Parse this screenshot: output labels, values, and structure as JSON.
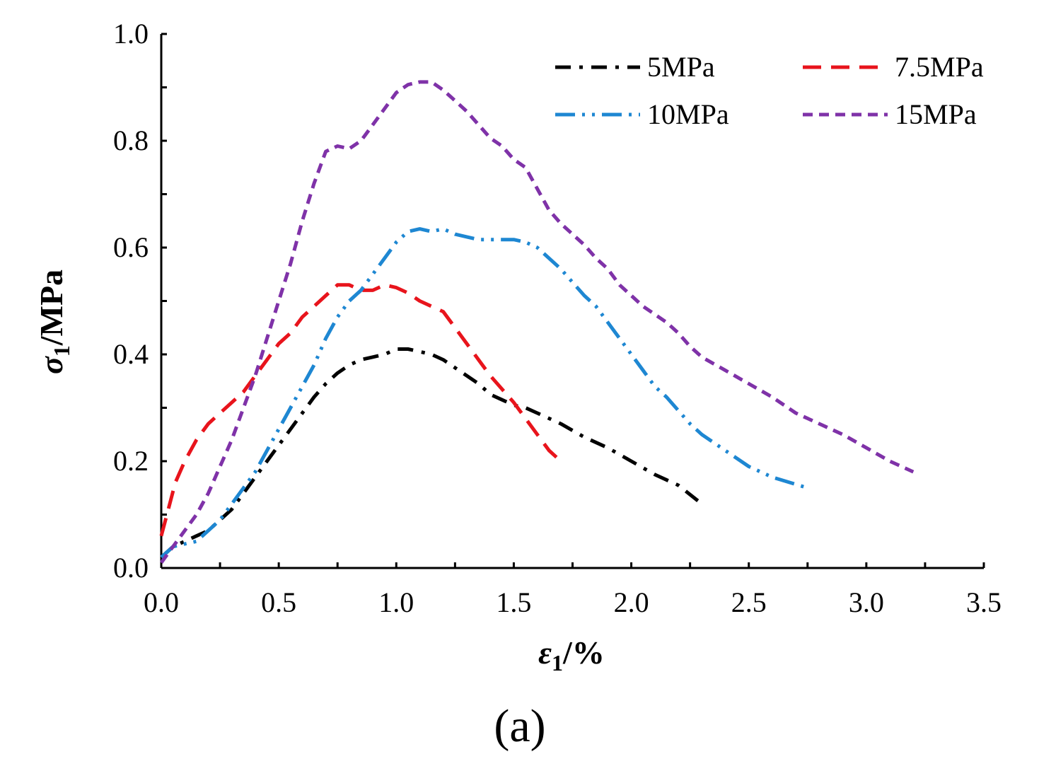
{
  "chart_data": {
    "type": "line",
    "title": "",
    "xlabel_symbol": "ε",
    "xlabel_subscript": "1",
    "xlabel_unit": "/%",
    "ylabel_symbol": "σ",
    "ylabel_subscript": "1",
    "ylabel_unit": "/MPa",
    "panel_label": "(a)",
    "xlim": [
      0,
      3.5
    ],
    "ylim": [
      0,
      1.0
    ],
    "xticks": [
      "0.0",
      "0.5",
      "1.0",
      "1.5",
      "2.0",
      "2.5",
      "3.0",
      "3.5"
    ],
    "yticks": [
      "0.0",
      "0.2",
      "0.4",
      "0.6",
      "0.8",
      "1.0"
    ],
    "legend_position": "top-right",
    "series": [
      {
        "name": "5MPa",
        "color": "#000000",
        "dash": "dashdot",
        "points": [
          [
            0.0,
            0.02
          ],
          [
            0.05,
            0.04
          ],
          [
            0.1,
            0.05
          ],
          [
            0.15,
            0.06
          ],
          [
            0.2,
            0.07
          ],
          [
            0.25,
            0.09
          ],
          [
            0.3,
            0.11
          ],
          [
            0.35,
            0.14
          ],
          [
            0.4,
            0.17
          ],
          [
            0.45,
            0.2
          ],
          [
            0.5,
            0.23
          ],
          [
            0.55,
            0.26
          ],
          [
            0.6,
            0.29
          ],
          [
            0.65,
            0.32
          ],
          [
            0.7,
            0.345
          ],
          [
            0.75,
            0.365
          ],
          [
            0.8,
            0.38
          ],
          [
            0.85,
            0.39
          ],
          [
            0.9,
            0.395
          ],
          [
            0.95,
            0.4
          ],
          [
            1.0,
            0.41
          ],
          [
            1.05,
            0.41
          ],
          [
            1.1,
            0.405
          ],
          [
            1.15,
            0.4
          ],
          [
            1.2,
            0.39
          ],
          [
            1.25,
            0.375
          ],
          [
            1.3,
            0.36
          ],
          [
            1.35,
            0.345
          ],
          [
            1.4,
            0.325
          ],
          [
            1.45,
            0.315
          ],
          [
            1.5,
            0.305
          ],
          [
            1.55,
            0.3
          ],
          [
            1.6,
            0.29
          ],
          [
            1.7,
            0.27
          ],
          [
            1.8,
            0.245
          ],
          [
            1.9,
            0.225
          ],
          [
            2.0,
            0.2
          ],
          [
            2.1,
            0.175
          ],
          [
            2.2,
            0.155
          ],
          [
            2.3,
            0.12
          ]
        ]
      },
      {
        "name": "7.5MPa",
        "color": "#e8141c",
        "dash": "dash",
        "points": [
          [
            0.0,
            0.06
          ],
          [
            0.03,
            0.11
          ],
          [
            0.06,
            0.16
          ],
          [
            0.1,
            0.2
          ],
          [
            0.15,
            0.24
          ],
          [
            0.2,
            0.27
          ],
          [
            0.25,
            0.29
          ],
          [
            0.3,
            0.31
          ],
          [
            0.35,
            0.33
          ],
          [
            0.4,
            0.36
          ],
          [
            0.45,
            0.39
          ],
          [
            0.5,
            0.42
          ],
          [
            0.55,
            0.44
          ],
          [
            0.6,
            0.47
          ],
          [
            0.65,
            0.49
          ],
          [
            0.7,
            0.51
          ],
          [
            0.75,
            0.53
          ],
          [
            0.8,
            0.53
          ],
          [
            0.85,
            0.52
          ],
          [
            0.9,
            0.52
          ],
          [
            0.95,
            0.53
          ],
          [
            1.0,
            0.525
          ],
          [
            1.05,
            0.515
          ],
          [
            1.1,
            0.5
          ],
          [
            1.15,
            0.49
          ],
          [
            1.2,
            0.48
          ],
          [
            1.25,
            0.45
          ],
          [
            1.3,
            0.42
          ],
          [
            1.35,
            0.39
          ],
          [
            1.4,
            0.36
          ],
          [
            1.45,
            0.335
          ],
          [
            1.5,
            0.31
          ],
          [
            1.55,
            0.28
          ],
          [
            1.6,
            0.25
          ],
          [
            1.65,
            0.22
          ],
          [
            1.7,
            0.2
          ]
        ]
      },
      {
        "name": "10MPa",
        "color": "#1e87d2",
        "dash": "dashdotdot",
        "points": [
          [
            0.0,
            0.02
          ],
          [
            0.05,
            0.04
          ],
          [
            0.1,
            0.045
          ],
          [
            0.15,
            0.05
          ],
          [
            0.2,
            0.07
          ],
          [
            0.25,
            0.09
          ],
          [
            0.3,
            0.12
          ],
          [
            0.35,
            0.15
          ],
          [
            0.4,
            0.18
          ],
          [
            0.45,
            0.22
          ],
          [
            0.5,
            0.26
          ],
          [
            0.55,
            0.3
          ],
          [
            0.6,
            0.34
          ],
          [
            0.65,
            0.38
          ],
          [
            0.7,
            0.43
          ],
          [
            0.75,
            0.47
          ],
          [
            0.8,
            0.5
          ],
          [
            0.85,
            0.52
          ],
          [
            0.9,
            0.55
          ],
          [
            0.95,
            0.58
          ],
          [
            1.0,
            0.61
          ],
          [
            1.05,
            0.63
          ],
          [
            1.1,
            0.635
          ],
          [
            1.15,
            0.63
          ],
          [
            1.2,
            0.635
          ],
          [
            1.25,
            0.625
          ],
          [
            1.3,
            0.62
          ],
          [
            1.35,
            0.615
          ],
          [
            1.4,
            0.615
          ],
          [
            1.45,
            0.615
          ],
          [
            1.5,
            0.615
          ],
          [
            1.55,
            0.61
          ],
          [
            1.6,
            0.6
          ],
          [
            1.65,
            0.58
          ],
          [
            1.7,
            0.56
          ],
          [
            1.75,
            0.535
          ],
          [
            1.8,
            0.51
          ],
          [
            1.85,
            0.49
          ],
          [
            1.9,
            0.46
          ],
          [
            1.95,
            0.43
          ],
          [
            2.0,
            0.4
          ],
          [
            2.05,
            0.37
          ],
          [
            2.1,
            0.34
          ],
          [
            2.15,
            0.32
          ],
          [
            2.2,
            0.295
          ],
          [
            2.25,
            0.27
          ],
          [
            2.3,
            0.25
          ],
          [
            2.4,
            0.22
          ],
          [
            2.5,
            0.19
          ],
          [
            2.6,
            0.17
          ],
          [
            2.75,
            0.15
          ]
        ]
      },
      {
        "name": "15MPa",
        "color": "#7f32a8",
        "dash": "shortdash",
        "points": [
          [
            0.0,
            0.01
          ],
          [
            0.05,
            0.04
          ],
          [
            0.1,
            0.07
          ],
          [
            0.15,
            0.1
          ],
          [
            0.2,
            0.14
          ],
          [
            0.25,
            0.19
          ],
          [
            0.3,
            0.24
          ],
          [
            0.35,
            0.3
          ],
          [
            0.4,
            0.36
          ],
          [
            0.45,
            0.43
          ],
          [
            0.5,
            0.5
          ],
          [
            0.55,
            0.57
          ],
          [
            0.6,
            0.65
          ],
          [
            0.65,
            0.72
          ],
          [
            0.7,
            0.78
          ],
          [
            0.75,
            0.79
          ],
          [
            0.8,
            0.785
          ],
          [
            0.85,
            0.8
          ],
          [
            0.9,
            0.83
          ],
          [
            0.95,
            0.86
          ],
          [
            1.0,
            0.89
          ],
          [
            1.05,
            0.905
          ],
          [
            1.1,
            0.91
          ],
          [
            1.15,
            0.91
          ],
          [
            1.2,
            0.895
          ],
          [
            1.25,
            0.875
          ],
          [
            1.3,
            0.855
          ],
          [
            1.35,
            0.83
          ],
          [
            1.4,
            0.805
          ],
          [
            1.45,
            0.79
          ],
          [
            1.5,
            0.765
          ],
          [
            1.55,
            0.75
          ],
          [
            1.6,
            0.71
          ],
          [
            1.65,
            0.67
          ],
          [
            1.7,
            0.645
          ],
          [
            1.75,
            0.625
          ],
          [
            1.8,
            0.605
          ],
          [
            1.85,
            0.58
          ],
          [
            1.9,
            0.56
          ],
          [
            1.95,
            0.53
          ],
          [
            2.0,
            0.51
          ],
          [
            2.05,
            0.49
          ],
          [
            2.1,
            0.475
          ],
          [
            2.15,
            0.46
          ],
          [
            2.2,
            0.44
          ],
          [
            2.25,
            0.415
          ],
          [
            2.3,
            0.395
          ],
          [
            2.4,
            0.37
          ],
          [
            2.5,
            0.345
          ],
          [
            2.6,
            0.32
          ],
          [
            2.7,
            0.29
          ],
          [
            2.8,
            0.27
          ],
          [
            2.9,
            0.25
          ],
          [
            3.0,
            0.225
          ],
          [
            3.1,
            0.2
          ],
          [
            3.2,
            0.18
          ]
        ]
      }
    ]
  }
}
